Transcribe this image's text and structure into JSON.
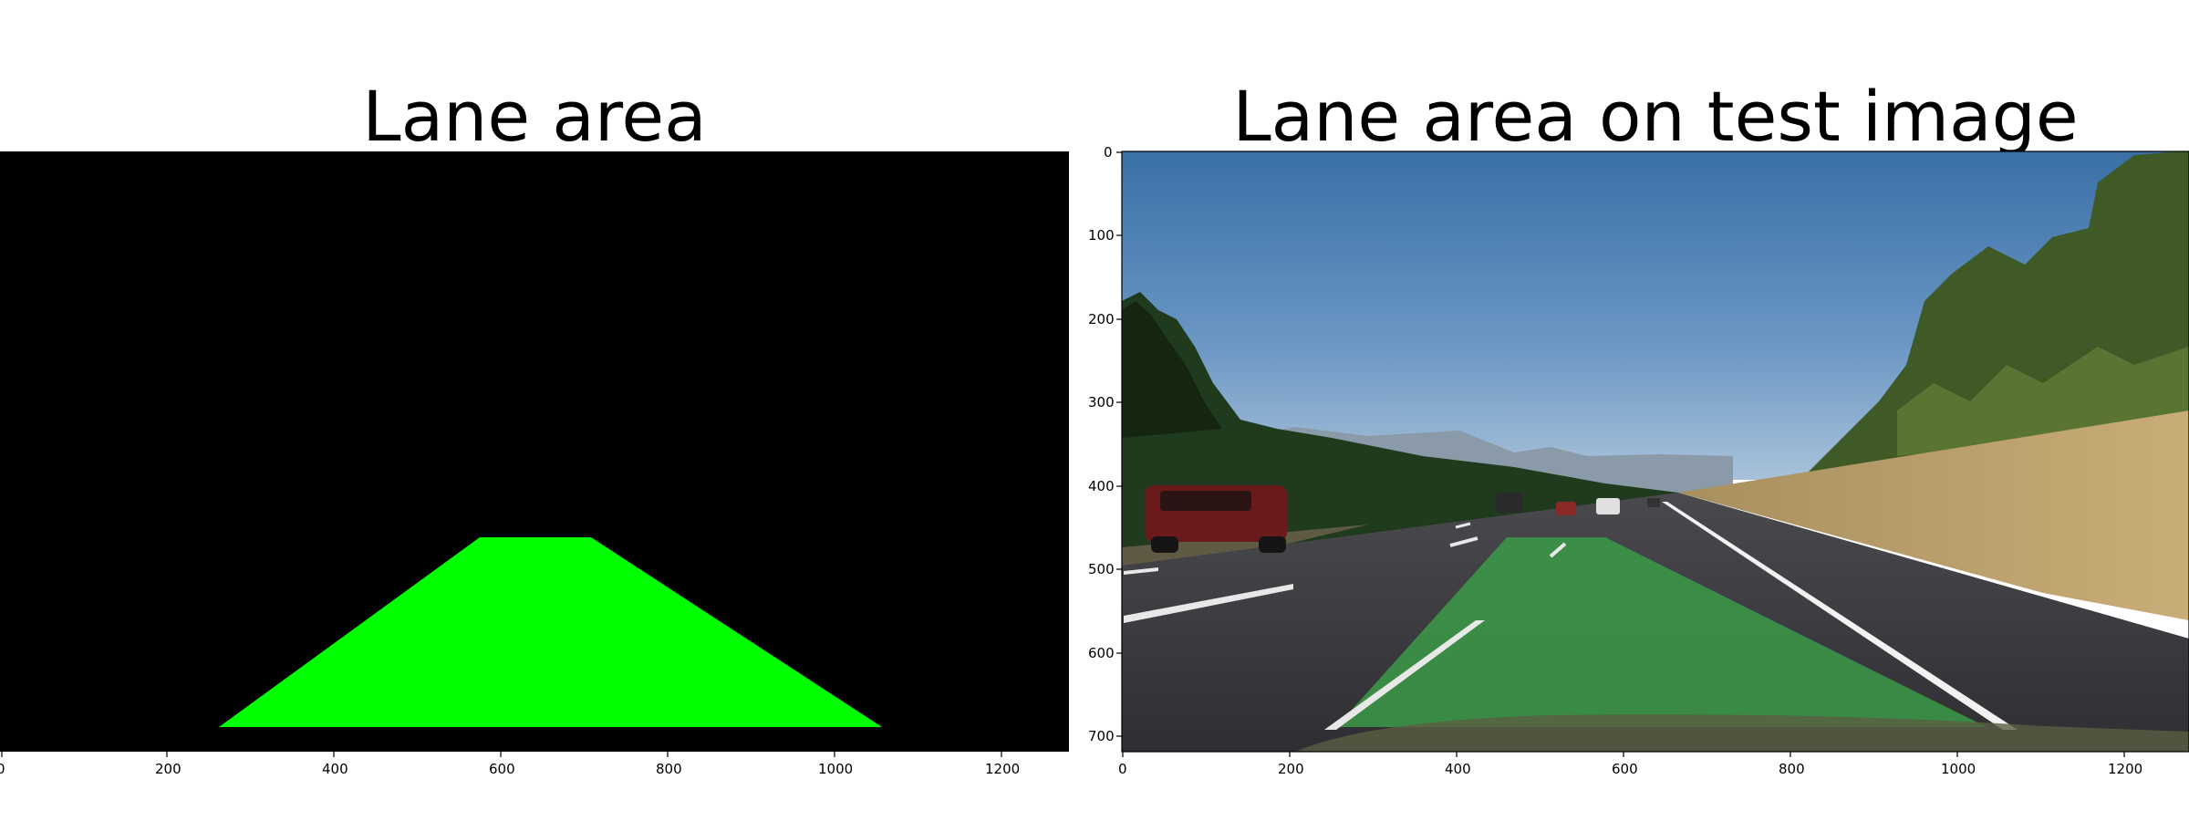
{
  "left_panel": {
    "title": "Lane area",
    "x_ticks": [
      "0",
      "200",
      "400",
      "600",
      "800",
      "1000",
      "1200"
    ],
    "background_color": "#000000",
    "lane_color": "#00ff00"
  },
  "right_panel": {
    "title": "Lane area on test image",
    "x_ticks": [
      "0",
      "200",
      "400",
      "600",
      "800",
      "1000",
      "1200"
    ],
    "y_ticks": [
      "0",
      "100",
      "200",
      "300",
      "400",
      "500",
      "600",
      "700"
    ],
    "lane_overlay_color": "#3a9a48",
    "scene": "highway road with lane markings, cars ahead, trees and hills, blue sky"
  }
}
